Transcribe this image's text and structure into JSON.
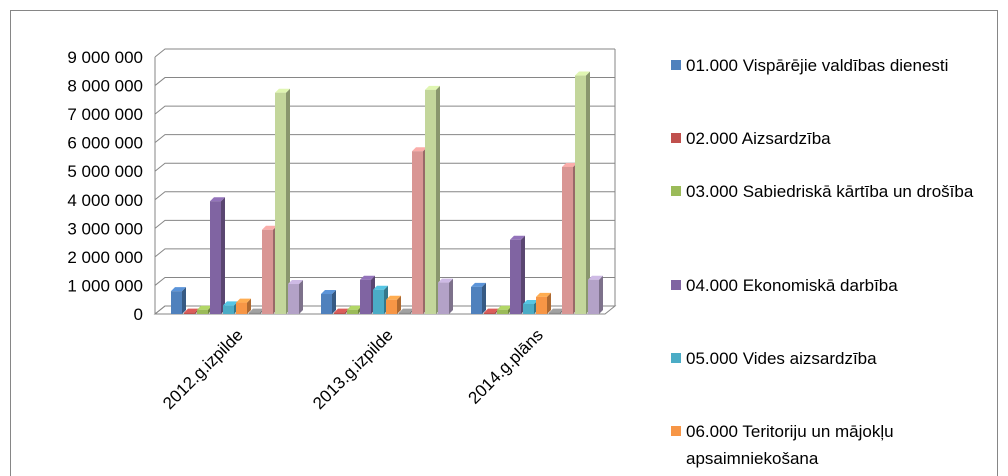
{
  "chart_data": {
    "type": "bar3d",
    "categories": [
      "2012.g.izpilde",
      "2013.g.izpilde",
      "2014.g.plāns"
    ],
    "ylim": [
      0,
      9000000
    ],
    "yticks": [
      0,
      {
        "value": 1000000,
        "label": "1 000 000"
      },
      {
        "value": 2000000,
        "label": "2 000 000"
      },
      {
        "value": 3000000,
        "label": "3 000 000"
      },
      {
        "value": 4000000,
        "label": "4 000 000"
      },
      {
        "value": 5000000,
        "label": "5 000 000"
      },
      {
        "value": 6000000,
        "label": "6 000 000"
      },
      {
        "value": 7000000,
        "label": "7 000 000"
      },
      {
        "value": 8000000,
        "label": "8 000 000"
      },
      {
        "value": 9000000,
        "label": "9 000 000"
      }
    ],
    "grid": true,
    "series": [
      {
        "name": "01.000 Vispārējie valdības dienesti",
        "color": "#4f81bd",
        "values": [
          800000,
          700000,
          950000
        ]
      },
      {
        "name": "02.000 Aizsardzība",
        "color": "#c0504d",
        "values": [
          50000,
          50000,
          50000
        ]
      },
      {
        "name": "03.000 Sabiedriskā kārtība un drošība",
        "color": "#9bbb59",
        "values": [
          150000,
          150000,
          150000
        ]
      },
      {
        "name": "04.000 Ekonomiskā darbība",
        "color": "#8064a2",
        "values": [
          3950000,
          1200000,
          2600000
        ]
      },
      {
        "name": "05.000 Vides aizsardzība",
        "color": "#4bacc6",
        "values": [
          300000,
          850000,
          350000
        ]
      },
      {
        "name": "06.000 Teritoriju un mājokļu apsaimniekošana",
        "color": "#f79646",
        "values": [
          400000,
          500000,
          600000
        ]
      },
      {
        "color": "#8c8c8c",
        "values": [
          50000,
          50000,
          50000
        ]
      },
      {
        "color": "#d99694",
        "values": [
          2950000,
          5700000,
          5150000
        ]
      },
      {
        "color": "#c3d69b",
        "values": [
          7750000,
          7850000,
          8350000
        ]
      },
      {
        "color": "#b3a2c7",
        "values": [
          1050000,
          1100000,
          1200000
        ]
      }
    ]
  }
}
